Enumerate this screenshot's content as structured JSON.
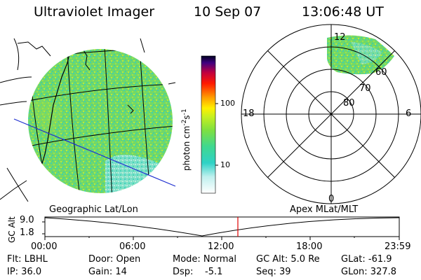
{
  "header": {
    "instrument": "Ultraviolet Imager",
    "date": "10 Sep 07",
    "time": "13:06:48 UT"
  },
  "colorbar": {
    "label": "photon cm",
    "label_sup1": "-2",
    "label_mid": "s",
    "label_sup2": "-1",
    "ticks": [
      "100",
      "10"
    ]
  },
  "polar_plot": {
    "labels_mlt": [
      "12",
      "18",
      "6",
      "0"
    ],
    "labels_mlat": [
      "60",
      "70",
      "80"
    ]
  },
  "timeline": {
    "left_title": "Geographic Lat/Lon",
    "right_title": "Apex MLat/MLT",
    "axis_label": "GC Alt",
    "y_ticks": [
      "9.0",
      "1.8"
    ],
    "x_ticks": [
      "00:00",
      "06:00",
      "12:00",
      "18:00",
      "23:59"
    ],
    "marker_time": "13:06"
  },
  "status": {
    "flt": "Flt: LBHL",
    "ip": "IP: 36.0",
    "door": "Door: Open",
    "gain": "Gain: 14",
    "mode": "Mode: Normal",
    "dsp_label": "Dsp:",
    "dsp_value": "-5.1",
    "gc_alt": "GC Alt: 5.0 Re",
    "seq": "Seq: 39",
    "glat": "GLat: -61.9",
    "glon": "GLon: 327.8"
  },
  "colors": {
    "aurora_green": "#7fdc4a",
    "aurora_cyan": "#2fd6c0",
    "grid_blue": "#2030d0",
    "marker_red": "#e00000"
  }
}
